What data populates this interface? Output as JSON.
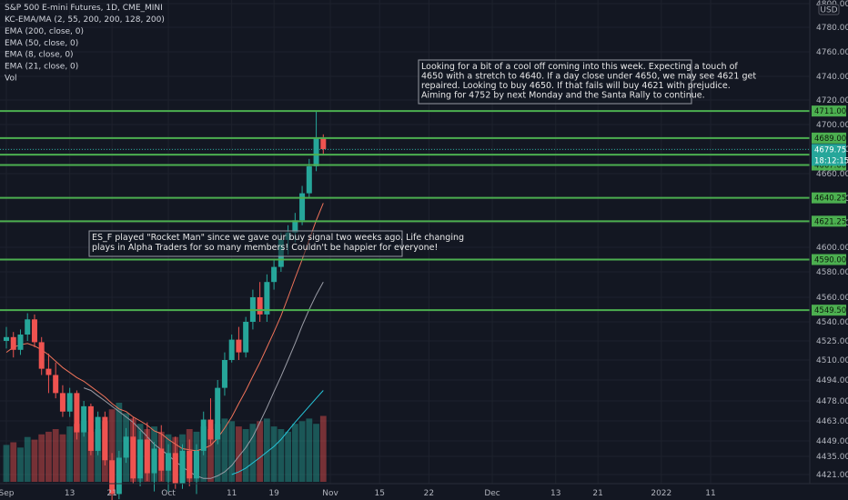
{
  "chart_data": {
    "type": "candlestick",
    "title": "S&P 500 E-mini Futures, 1D, CME_MINI",
    "legend_lines": [
      "KC-EMA/MA (2, 55, 200, 200, 128, 200)",
      "EMA (200, close, 0)",
      "EMA (50, close, 0)",
      "EMA (8, close, 0)",
      "EMA (21, close, 0)",
      "Vol"
    ],
    "y_axis": {
      "ticks": [
        {
          "v": 4421.0,
          "t": "4421.00"
        },
        {
          "v": 4435.0,
          "t": "4435.00"
        },
        {
          "v": 4449.0,
          "t": "4449.00"
        },
        {
          "v": 4463.0,
          "t": "4463.00"
        },
        {
          "v": 4478.0,
          "t": "4478.00"
        },
        {
          "v": 4494.0,
          "t": "4494.00"
        },
        {
          "v": 4510.0,
          "t": "4510.00"
        },
        {
          "v": 4525.0,
          "t": "4525.00"
        },
        {
          "v": 4540.0,
          "t": "4540.00"
        },
        {
          "v": 4560.0,
          "t": "4560.00"
        },
        {
          "v": 4580.0,
          "t": "4580.00"
        },
        {
          "v": 4600.0,
          "t": "4600.00"
        },
        {
          "v": 4620.0,
          "t": "4620.00"
        },
        {
          "v": 4640.0,
          "t": "4640.00"
        },
        {
          "v": 4660.0,
          "t": "4660.00"
        },
        {
          "v": 4680.0,
          "t": "4680.00"
        },
        {
          "v": 4700.0,
          "t": "4700.00"
        },
        {
          "v": 4720.0,
          "t": "4720.00"
        },
        {
          "v": 4740.0,
          "t": "4740.00"
        },
        {
          "v": 4760.0,
          "t": "4760.00"
        },
        {
          "v": 4780.0,
          "t": "4780.00"
        },
        {
          "v": 4800.0,
          "t": "4800.00"
        }
      ],
      "currency": "USD"
    },
    "x_axis": {
      "ticks": [
        {
          "i": 0,
          "t": "Sep"
        },
        {
          "i": 9,
          "t": "13"
        },
        {
          "i": 15,
          "t": "21"
        },
        {
          "i": 23,
          "t": "Oct"
        },
        {
          "i": 32,
          "t": "11"
        },
        {
          "i": 38,
          "t": "19"
        },
        {
          "i": 46,
          "t": "Nov"
        },
        {
          "i": 53,
          "t": "15"
        },
        {
          "i": 60,
          "t": "22"
        },
        {
          "i": 69,
          "t": "Dec"
        },
        {
          "i": 78,
          "t": "13"
        },
        {
          "i": 84,
          "t": "21"
        },
        {
          "i": 93,
          "t": "2022"
        },
        {
          "i": 100,
          "t": "11"
        }
      ]
    },
    "levels": [
      {
        "v": 4711.0,
        "t": "4711.00"
      },
      {
        "v": 4689.0,
        "t": "4689.00"
      },
      {
        "v": 4675.5,
        "t": "4675.50"
      },
      {
        "v": 4667.0,
        "t": "4667.00"
      },
      {
        "v": 4640.25,
        "t": "4640.25"
      },
      {
        "v": 4621.25,
        "t": "4621.25"
      },
      {
        "v": 4590.0,
        "t": "4590.00"
      },
      {
        "v": 4549.5,
        "t": "4549.50"
      }
    ],
    "last_price": {
      "v": 4679.75,
      "t": "4679.75",
      "countdown": "18:12:15"
    },
    "candles": [
      [
        4525,
        4536,
        4519,
        4528
      ],
      [
        4528,
        4532,
        4512,
        4518
      ],
      [
        4518,
        4534,
        4514,
        4530
      ],
      [
        4530,
        4547,
        4525,
        4542
      ],
      [
        4542,
        4546,
        4520,
        4524
      ],
      [
        4524,
        4528,
        4498,
        4503
      ],
      [
        4503,
        4515,
        4484,
        4498
      ],
      [
        4498,
        4508,
        4480,
        4484
      ],
      [
        4484,
        4490,
        4466,
        4470
      ],
      [
        4470,
        4488,
        4466,
        4484
      ],
      [
        4484,
        4486,
        4450,
        4455
      ],
      [
        4455,
        4478,
        4452,
        4474
      ],
      [
        4474,
        4476,
        4436,
        4440
      ],
      [
        4440,
        4470,
        4436,
        4466
      ],
      [
        4466,
        4470,
        4428,
        4432
      ],
      [
        4432,
        4438,
        4400,
        4406
      ],
      [
        4406,
        4440,
        4402,
        4434
      ],
      [
        4434,
        4458,
        4430,
        4452
      ],
      [
        4452,
        4466,
        4414,
        4418
      ],
      [
        4418,
        4456,
        4412,
        4450
      ],
      [
        4450,
        4462,
        4416,
        4422
      ],
      [
        4422,
        4448,
        4408,
        4442
      ],
      [
        4442,
        4460,
        4416,
        4424
      ],
      [
        4424,
        4446,
        4408,
        4438
      ],
      [
        4438,
        4452,
        4410,
        4414
      ],
      [
        4414,
        4446,
        4410,
        4440
      ],
      [
        4440,
        4450,
        4412,
        4418
      ],
      [
        4418,
        4446,
        4406,
        4440
      ],
      [
        4440,
        4470,
        4436,
        4464
      ],
      [
        4464,
        4480,
        4446,
        4450
      ],
      [
        4450,
        4494,
        4446,
        4488
      ],
      [
        4488,
        4516,
        4482,
        4510
      ],
      [
        4510,
        4530,
        4508,
        4526
      ],
      [
        4526,
        4536,
        4510,
        4516
      ],
      [
        4516,
        4544,
        4512,
        4540
      ],
      [
        4540,
        4566,
        4534,
        4560
      ],
      [
        4560,
        4572,
        4540,
        4546
      ],
      [
        4546,
        4578,
        4540,
        4572
      ],
      [
        4572,
        4590,
        4566,
        4584
      ],
      [
        4584,
        4612,
        4580,
        4606
      ],
      [
        4606,
        4618,
        4594,
        4612
      ],
      [
        4612,
        4628,
        4604,
        4622
      ],
      [
        4622,
        4650,
        4618,
        4644
      ],
      [
        4644,
        4672,
        4640,
        4666
      ],
      [
        4666,
        4711,
        4662,
        4689
      ],
      [
        4689,
        4692,
        4676,
        4680
      ]
    ],
    "ema_red": [
      4516,
      4520,
      4522,
      4523,
      4521,
      4518,
      4514,
      4509,
      4504,
      4500,
      4496,
      4493,
      4489,
      4485,
      4481,
      4476,
      4472,
      4470,
      4466,
      4463,
      4460,
      4456,
      4454,
      4450,
      4446,
      4442,
      4441,
      4440,
      4442,
      4445,
      4451,
      4458,
      4466,
      4476,
      4486,
      4497,
      4508,
      4520,
      4532,
      4545,
      4560,
      4575,
      4590,
      4606,
      4622,
      4636
    ],
    "ema_gray": [
      4488,
      4486,
      4482,
      4478,
      4474,
      4470,
      4466,
      4462,
      4457,
      4452,
      4446,
      4441,
      4436,
      4431,
      4427,
      4423,
      4420,
      4418,
      4418,
      4420,
      4423,
      4428,
      4435,
      4443,
      4452,
      4462,
      4473,
      4485,
      4497,
      4510,
      4523,
      4537,
      4550,
      4562,
      4572
    ],
    "ema_teal": [
      4421,
      4423,
      4426,
      4430,
      4434,
      4439,
      4444,
      4450,
      4456,
      4462,
      4468,
      4474,
      4480,
      4486
    ],
    "volume": [
      28,
      30,
      26,
      34,
      32,
      36,
      38,
      40,
      36,
      42,
      44,
      46,
      38,
      40,
      46,
      55,
      60,
      52,
      48,
      44,
      40,
      42,
      38,
      36,
      34,
      36,
      40,
      38,
      42,
      40,
      44,
      48,
      46,
      42,
      40,
      44,
      46,
      48,
      42,
      40,
      38,
      44,
      46,
      48,
      44,
      50
    ],
    "annotations": [
      {
        "lines": [
          "Looking for a bit of a cool off coming into this week. Expecting a touch of",
          "4650 with a stretch to 4640. If a day close under 4650, we may see 4621 get",
          "repaired. Looking to buy 4650. If that fails will buy 4621 with prejudice.",
          "Aiming for 4752 by next Monday and the Santa Rally to continue."
        ]
      },
      {
        "lines": [
          "ES_F played \"Rocket Man\" since we gave our buy signal two weeks ago. Life changing",
          "plays in Alpha Traders for so many members! Couldn't be happier for everyone!"
        ]
      }
    ],
    "colors": {
      "up": "#26a69a",
      "down": "#ef5350",
      "level": "#4caf50",
      "ema_red": "#f0735a",
      "ema_gray": "#9a9ca6",
      "ema_teal": "#26c6da",
      "last": "#26a69a"
    }
  }
}
